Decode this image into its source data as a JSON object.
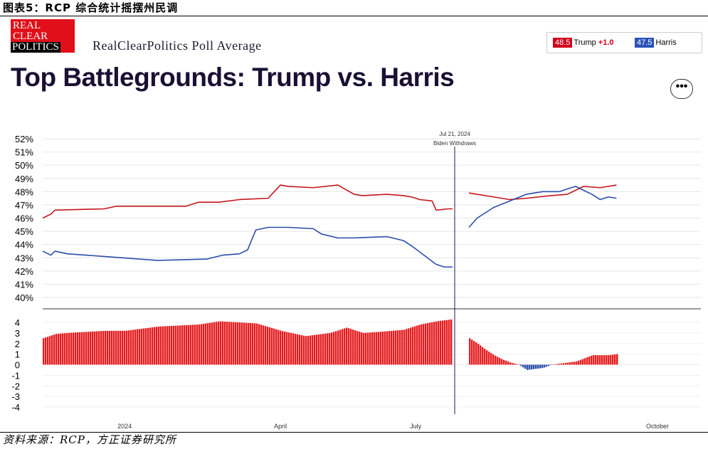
{
  "caption": "图表5：RCP 综合统计摇摆州民调",
  "source": "资料来源：RCP，方正证券研究所",
  "logo": {
    "line1": "REAL",
    "line2": "CLEAR",
    "line3": "POLITICS"
  },
  "poll_title": "RealClearPolitics Poll Average",
  "title": "Top Battlegrounds: Trump vs. Harris",
  "legend": {
    "trump": {
      "value": "48.5",
      "name": "Trump",
      "spread": "+1.0",
      "color": "#d0021b"
    },
    "harris": {
      "value": "47.5",
      "name": "Harris",
      "color": "#2c52b8"
    }
  },
  "more_button": "•••",
  "annotation": {
    "date": "Jul 21, 2024",
    "label": "Biden Withdraws"
  },
  "chart_data": [
    {
      "type": "line",
      "y_ticks": [
        "52%",
        "51%",
        "50%",
        "49%",
        "48%",
        "47%",
        "46%",
        "45%",
        "44%",
        "43%",
        "42%",
        "41%",
        "40%"
      ],
      "ylim": [
        40,
        52
      ],
      "x_ticks": [
        "2024",
        "April",
        "July",
        "October"
      ],
      "x_tick_positions": [
        0.2,
        0.58,
        0.91,
        1.5
      ],
      "series": [
        {
          "name": "Trump",
          "color": "#c4161c",
          "x": [
            0,
            0.02,
            0.03,
            0.15,
            0.18,
            0.35,
            0.38,
            0.43,
            0.48,
            0.55,
            0.58,
            0.6,
            0.66,
            0.72,
            0.76,
            0.78,
            0.84,
            0.88,
            0.9,
            0.92,
            0.95,
            0.96,
            0.99,
            1.0,
            1.04,
            1.06,
            1.1,
            1.14,
            1.18,
            1.24,
            1.28,
            1.32,
            1.36,
            1.4
          ],
          "y": [
            46.0,
            46.3,
            46.6,
            46.7,
            46.9,
            46.9,
            47.2,
            47.2,
            47.4,
            47.5,
            48.5,
            48.4,
            48.3,
            48.5,
            47.8,
            47.7,
            47.8,
            47.7,
            47.6,
            47.4,
            47.3,
            46.6,
            46.7,
            46.7,
            47.9,
            47.8,
            47.6,
            47.4,
            47.5,
            47.7,
            47.8,
            48.4,
            48.3,
            48.5
          ]
        },
        {
          "name": "Harris",
          "color": "#2a4da8",
          "x": [
            0,
            0.02,
            0.03,
            0.06,
            0.15,
            0.28,
            0.4,
            0.44,
            0.48,
            0.5,
            0.52,
            0.55,
            0.6,
            0.66,
            0.68,
            0.72,
            0.76,
            0.84,
            0.88,
            0.9,
            0.93,
            0.96,
            0.98,
            1.0,
            1.04,
            1.06,
            1.1,
            1.14,
            1.18,
            1.22,
            1.26,
            1.3,
            1.34,
            1.36,
            1.38,
            1.4
          ],
          "y": [
            43.5,
            43.2,
            43.5,
            43.3,
            43.1,
            42.8,
            42.9,
            43.2,
            43.3,
            43.6,
            45.1,
            45.3,
            45.3,
            45.2,
            44.8,
            44.5,
            44.5,
            44.6,
            44.3,
            43.9,
            43.2,
            42.5,
            42.3,
            42.3,
            45.3,
            46.0,
            46.8,
            47.3,
            47.8,
            48.0,
            48.0,
            48.4,
            47.8,
            47.4,
            47.6,
            47.5
          ]
        }
      ]
    },
    {
      "type": "bar",
      "name": "Spread",
      "color": "#e41a1c",
      "negative_color": "#2a4da8",
      "y_ticks": [
        "4",
        "3",
        "2",
        "1",
        "0",
        "-1",
        "-2",
        "-3",
        "-4"
      ],
      "ylim": [
        -4,
        4
      ],
      "segments": [
        {
          "x": [
            0,
            0.03,
            0.06,
            0.15,
            0.2,
            0.28,
            0.38,
            0.43,
            0.52,
            0.58,
            0.64,
            0.7,
            0.74,
            0.78,
            0.82,
            0.88,
            0.92,
            0.96,
            1.0
          ],
          "values": [
            2.5,
            2.9,
            3.0,
            3.2,
            3.2,
            3.6,
            3.8,
            4.1,
            3.9,
            3.2,
            2.7,
            3.0,
            3.5,
            3.0,
            3.1,
            3.3,
            3.8,
            4.1,
            4.3
          ]
        },
        {
          "x": [
            1.04,
            1.06,
            1.08,
            1.1,
            1.12,
            1.14,
            1.16,
            1.18,
            1.2,
            1.22,
            1.24,
            1.26,
            1.28,
            1.3,
            1.32,
            1.34,
            1.36,
            1.38,
            1.4
          ],
          "values": [
            2.5,
            2.0,
            1.4,
            0.9,
            0.5,
            0.2,
            0.0,
            -0.5,
            -0.4,
            -0.3,
            0.0,
            0.1,
            0.2,
            0.3,
            0.6,
            0.9,
            0.9,
            0.9,
            1.0
          ]
        }
      ]
    }
  ]
}
